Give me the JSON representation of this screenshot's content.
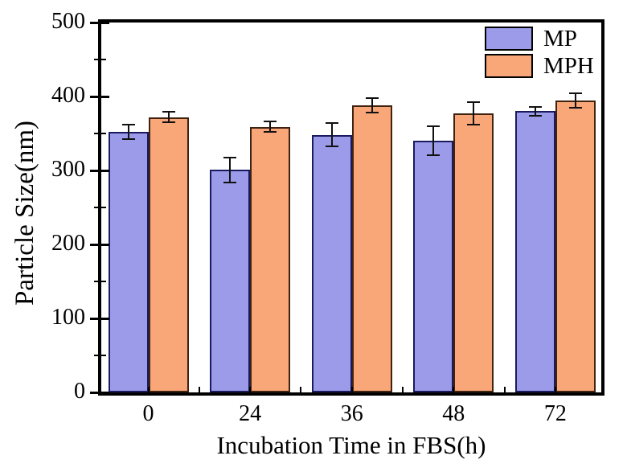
{
  "figure": {
    "background": "#ffffff",
    "frame_color": "#000000"
  },
  "chart_data": {
    "type": "bar",
    "title": "",
    "xlabel": "Incubation Time in FBS(h)",
    "ylabel": "Particle Size(nm)",
    "categories": [
      "0",
      "24",
      "36",
      "48",
      "72"
    ],
    "series": [
      {
        "name": "MP",
        "fill": "#9b9bea",
        "edge": "#1a1a5e",
        "values": [
          352,
          301,
          348,
          340,
          380
        ],
        "errors": [
          11,
          18,
          17,
          21,
          7
        ]
      },
      {
        "name": "MPH",
        "fill": "#f9a678",
        "edge": "#3f2310",
        "values": [
          372,
          359,
          388,
          377,
          395
        ],
        "errors": [
          8,
          8,
          11,
          16,
          11
        ]
      }
    ],
    "ylim": [
      0,
      500
    ],
    "yticks": [
      0,
      100,
      200,
      300,
      400,
      500
    ],
    "yminor_step": 50,
    "grid": false,
    "legend_position": "top-right",
    "error_bar_color": "#111111"
  }
}
